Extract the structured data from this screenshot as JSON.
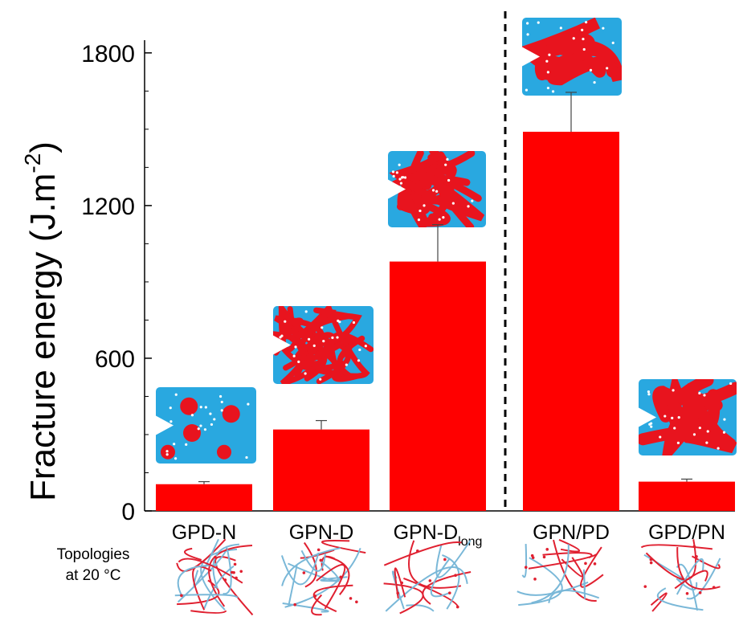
{
  "chart_data": {
    "type": "bar",
    "title": "",
    "xlabel": "",
    "ylabel": "Fracture energy (J.m",
    "ylabel_sup": "-2",
    "ylabel_close": ")",
    "ylim": [
      0,
      1850
    ],
    "yticks": [
      0,
      600,
      1200,
      1800
    ],
    "yticks_labels": [
      "0",
      "600",
      "1200",
      "1800"
    ],
    "grid": false,
    "categories": [
      "GPD-N",
      "GPN-D",
      "GPN-Dlong",
      "GPN/PD",
      "GPD/PN"
    ],
    "category_display": [
      {
        "main": "GPD-N",
        "sub": ""
      },
      {
        "main": "GPN-D",
        "sub": ""
      },
      {
        "main": "GPN-D",
        "sub": "long"
      },
      {
        "main": "GPN/PD",
        "sub": ""
      },
      {
        "main": "GPD/PN",
        "sub": ""
      }
    ],
    "values": [
      105,
      320,
      980,
      1490,
      115
    ],
    "errors": [
      10,
      35,
      145,
      155,
      10
    ],
    "bar_color": "#ff0000",
    "separator": "dashed vertical line between GPN-Dlong and GPN/PD",
    "annotation_left": [
      "Topologies",
      "at 20 °C"
    ],
    "inset_colors": {
      "background": "#29a8e0",
      "phase": "#e8141e",
      "dots": "#ffffff"
    },
    "network_colors": {
      "red": "#e02030",
      "blue": "#7ab8d8"
    }
  }
}
